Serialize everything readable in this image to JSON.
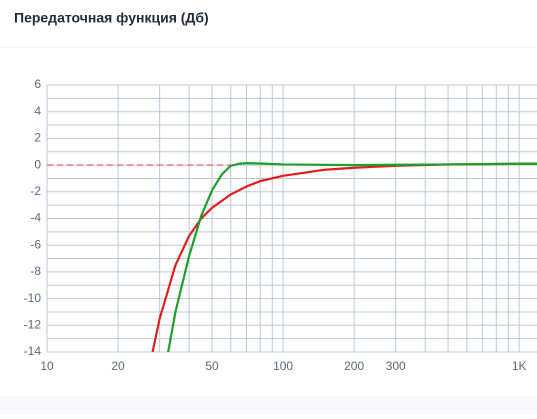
{
  "header": {
    "title": "Передаточная функция (Дб)"
  },
  "chart_data": {
    "type": "line",
    "xscale": "log",
    "grid": true,
    "xlim": [
      10,
      1190
    ],
    "ylim": [
      -14,
      6
    ],
    "xticks": [
      10,
      20,
      50,
      100,
      200,
      300,
      {
        "value": 1000,
        "label": "1K"
      }
    ],
    "xgrid": [
      10,
      20,
      30,
      40,
      50,
      60,
      70,
      80,
      90,
      100,
      200,
      300,
      400,
      500,
      600,
      700,
      800,
      900,
      1000
    ],
    "yticks": [
      6,
      4,
      2,
      0,
      -2,
      -4,
      -6,
      -8,
      -10,
      -12,
      -14
    ],
    "ygrid": [
      6,
      5,
      4,
      3,
      2,
      1,
      0,
      -1,
      -2,
      -3,
      -4,
      -5,
      -6,
      -7,
      -8,
      -9,
      -10,
      -11,
      -12,
      -13,
      -14
    ],
    "series": [
      {
        "color": "#f07878",
        "dash": true,
        "x": [
          10,
          60
        ],
        "values": [
          0,
          0
        ]
      },
      {
        "color": "#dd1f1f",
        "x": [
          28,
          30,
          35,
          40,
          45,
          50,
          60,
          70,
          80,
          100,
          150,
          200,
          300,
          500,
          1000,
          1190
        ],
        "values": [
          -14,
          -11.5,
          -7.5,
          -5.3,
          -4,
          -3.2,
          -2.2,
          -1.6,
          -1.2,
          -0.8,
          -0.35,
          -0.2,
          -0.05,
          0.05,
          0.1,
          0.1
        ]
      },
      {
        "color": "#1f9e2a",
        "x": [
          32.6,
          35,
          40,
          45,
          50,
          55,
          60,
          65,
          70,
          80,
          100,
          200,
          500,
          1000,
          1190
        ],
        "values": [
          -14,
          -11,
          -6.8,
          -3.8,
          -1.9,
          -0.7,
          -0.05,
          0.1,
          0.15,
          0.12,
          0.05,
          0,
          0.05,
          0.1,
          0.1
        ]
      }
    ]
  }
}
